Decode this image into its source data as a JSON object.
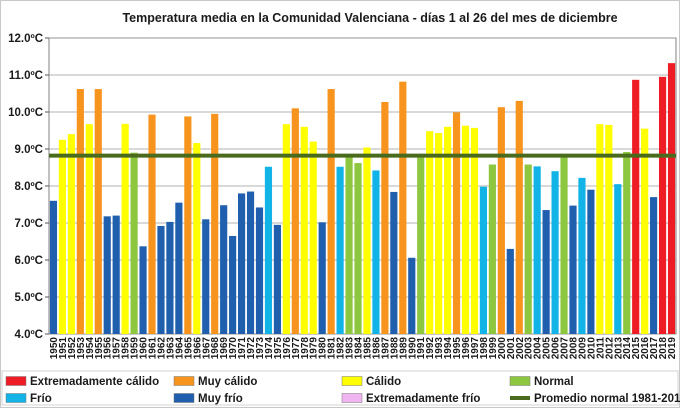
{
  "chart_data": {
    "type": "bar",
    "title": "Temperatura media en la Comunidad Valenciana - días 1 al 26 del mes de diciembre",
    "xlabel": "",
    "ylabel": "",
    "ylim": [
      4.0,
      12.0
    ],
    "y_ticks": [
      "4.0ºC",
      "5.0ºC",
      "6.0ºC",
      "7.0ºC",
      "8.0ºC",
      "9.0ºC",
      "10.0ºC",
      "11.0ºC",
      "12.0ºC"
    ],
    "grid": true,
    "categories": [
      "1950",
      "1951",
      "1952",
      "1953",
      "1954",
      "1955",
      "1956",
      "1957",
      "1958",
      "1959",
      "1960",
      "1961",
      "1962",
      "1963",
      "1964",
      "1965",
      "1966",
      "1967",
      "1968",
      "1969",
      "1970",
      "1971",
      "1972",
      "1973",
      "1974",
      "1975",
      "1976",
      "1977",
      "1978",
      "1979",
      "1980",
      "1981",
      "1982",
      "1983",
      "1984",
      "1985",
      "1986",
      "1987",
      "1988",
      "1989",
      "1990",
      "1991",
      "1992",
      "1993",
      "1994",
      "1995",
      "1996",
      "1997",
      "1998",
      "1999",
      "2000",
      "2001",
      "2002",
      "2003",
      "2004",
      "2005",
      "2006",
      "2007",
      "2008",
      "2009",
      "2010",
      "2011",
      "2012",
      "2013",
      "2014",
      "2015",
      "2016",
      "2017",
      "2018",
      "2019"
    ],
    "values": [
      7.6,
      9.25,
      9.4,
      10.62,
      9.67,
      10.62,
      7.18,
      7.2,
      9.68,
      8.9,
      6.37,
      9.93,
      6.92,
      7.03,
      7.55,
      9.88,
      9.16,
      7.1,
      9.95,
      7.48,
      6.65,
      7.8,
      7.85,
      7.42,
      8.52,
      6.95,
      9.67,
      10.1,
      9.6,
      9.2,
      7.02,
      10.62,
      8.52,
      8.78,
      8.62,
      9.04,
      8.42,
      10.27,
      7.84,
      10.82,
      6.06,
      8.82,
      9.48,
      9.43,
      9.6,
      9.99,
      9.63,
      9.57,
      7.98,
      8.58,
      10.13,
      6.3,
      10.3,
      8.58,
      8.53,
      7.35,
      8.4,
      8.8,
      7.47,
      8.22,
      7.9,
      9.67,
      9.65,
      8.05,
      8.92,
      10.87,
      9.55,
      7.7,
      10.95,
      11.32
    ],
    "classes": [
      "muy_frio",
      "calido",
      "calido",
      "muy_calido",
      "calido",
      "muy_calido",
      "muy_frio",
      "muy_frio",
      "calido",
      "normal",
      "muy_frio",
      "muy_calido",
      "muy_frio",
      "muy_frio",
      "muy_frio",
      "muy_calido",
      "calido",
      "muy_frio",
      "muy_calido",
      "muy_frio",
      "muy_frio",
      "muy_frio",
      "muy_frio",
      "muy_frio",
      "frio",
      "muy_frio",
      "calido",
      "muy_calido",
      "calido",
      "calido",
      "muy_frio",
      "muy_calido",
      "frio",
      "normal",
      "normal",
      "calido",
      "frio",
      "muy_calido",
      "muy_frio",
      "muy_calido",
      "muy_frio",
      "normal",
      "calido",
      "calido",
      "calido",
      "muy_calido",
      "calido",
      "calido",
      "frio",
      "normal",
      "muy_calido",
      "muy_frio",
      "muy_calido",
      "normal",
      "frio",
      "muy_frio",
      "frio",
      "normal",
      "muy_frio",
      "frio",
      "muy_frio",
      "calido",
      "calido",
      "frio",
      "normal",
      "ext_calido",
      "calido",
      "muy_frio",
      "ext_calido",
      "ext_calido"
    ],
    "colors": {
      "ext_calido": "#ee1c24",
      "muy_calido": "#f7941e",
      "calido": "#ffff00",
      "normal": "#8dc63f",
      "frio": "#12b3e6",
      "muy_frio": "#1f5fad",
      "ext_frio": "#f0b4f0",
      "promedio": "#4a6b1e"
    },
    "promedio_normal": 8.82,
    "legend": [
      {
        "key": "ext_calido",
        "label": "Extremadamente cálido"
      },
      {
        "key": "muy_calido",
        "label": "Muy cálido"
      },
      {
        "key": "calido",
        "label": "Cálido"
      },
      {
        "key": "normal",
        "label": "Normal"
      },
      {
        "key": "frio",
        "label": "Frío"
      },
      {
        "key": "muy_frio",
        "label": "Muy frío"
      },
      {
        "key": "ext_frio",
        "label": "Extremadamente frío"
      },
      {
        "key": "promedio",
        "label": "Promedio normal 1981-2010"
      }
    ]
  }
}
